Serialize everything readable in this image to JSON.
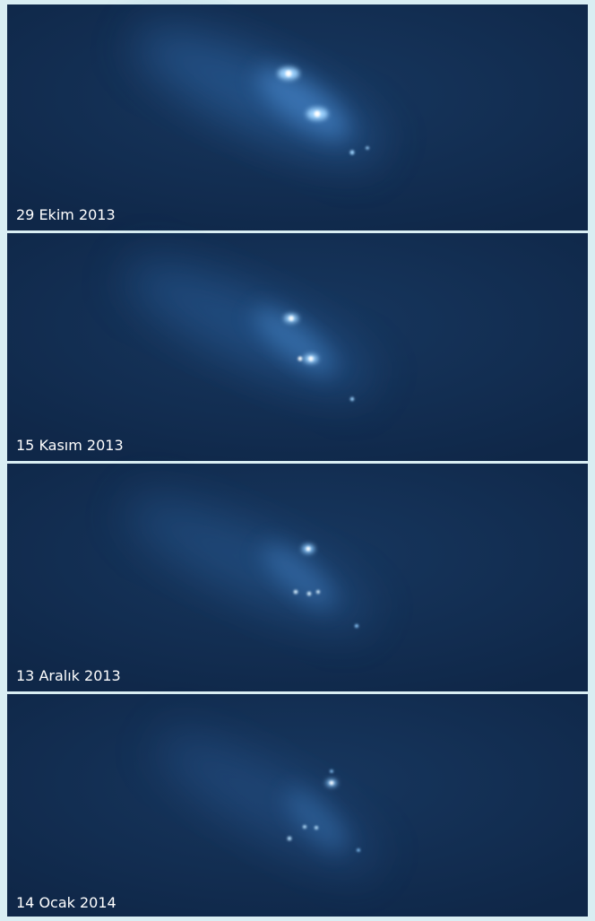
{
  "panels": [
    {
      "label": "29 Ekim 2013"
    },
    {
      "label": "15 Kasım 2013"
    },
    {
      "label": "13 Aralık 2013"
    },
    {
      "label": "14 Ocak 2014"
    }
  ]
}
